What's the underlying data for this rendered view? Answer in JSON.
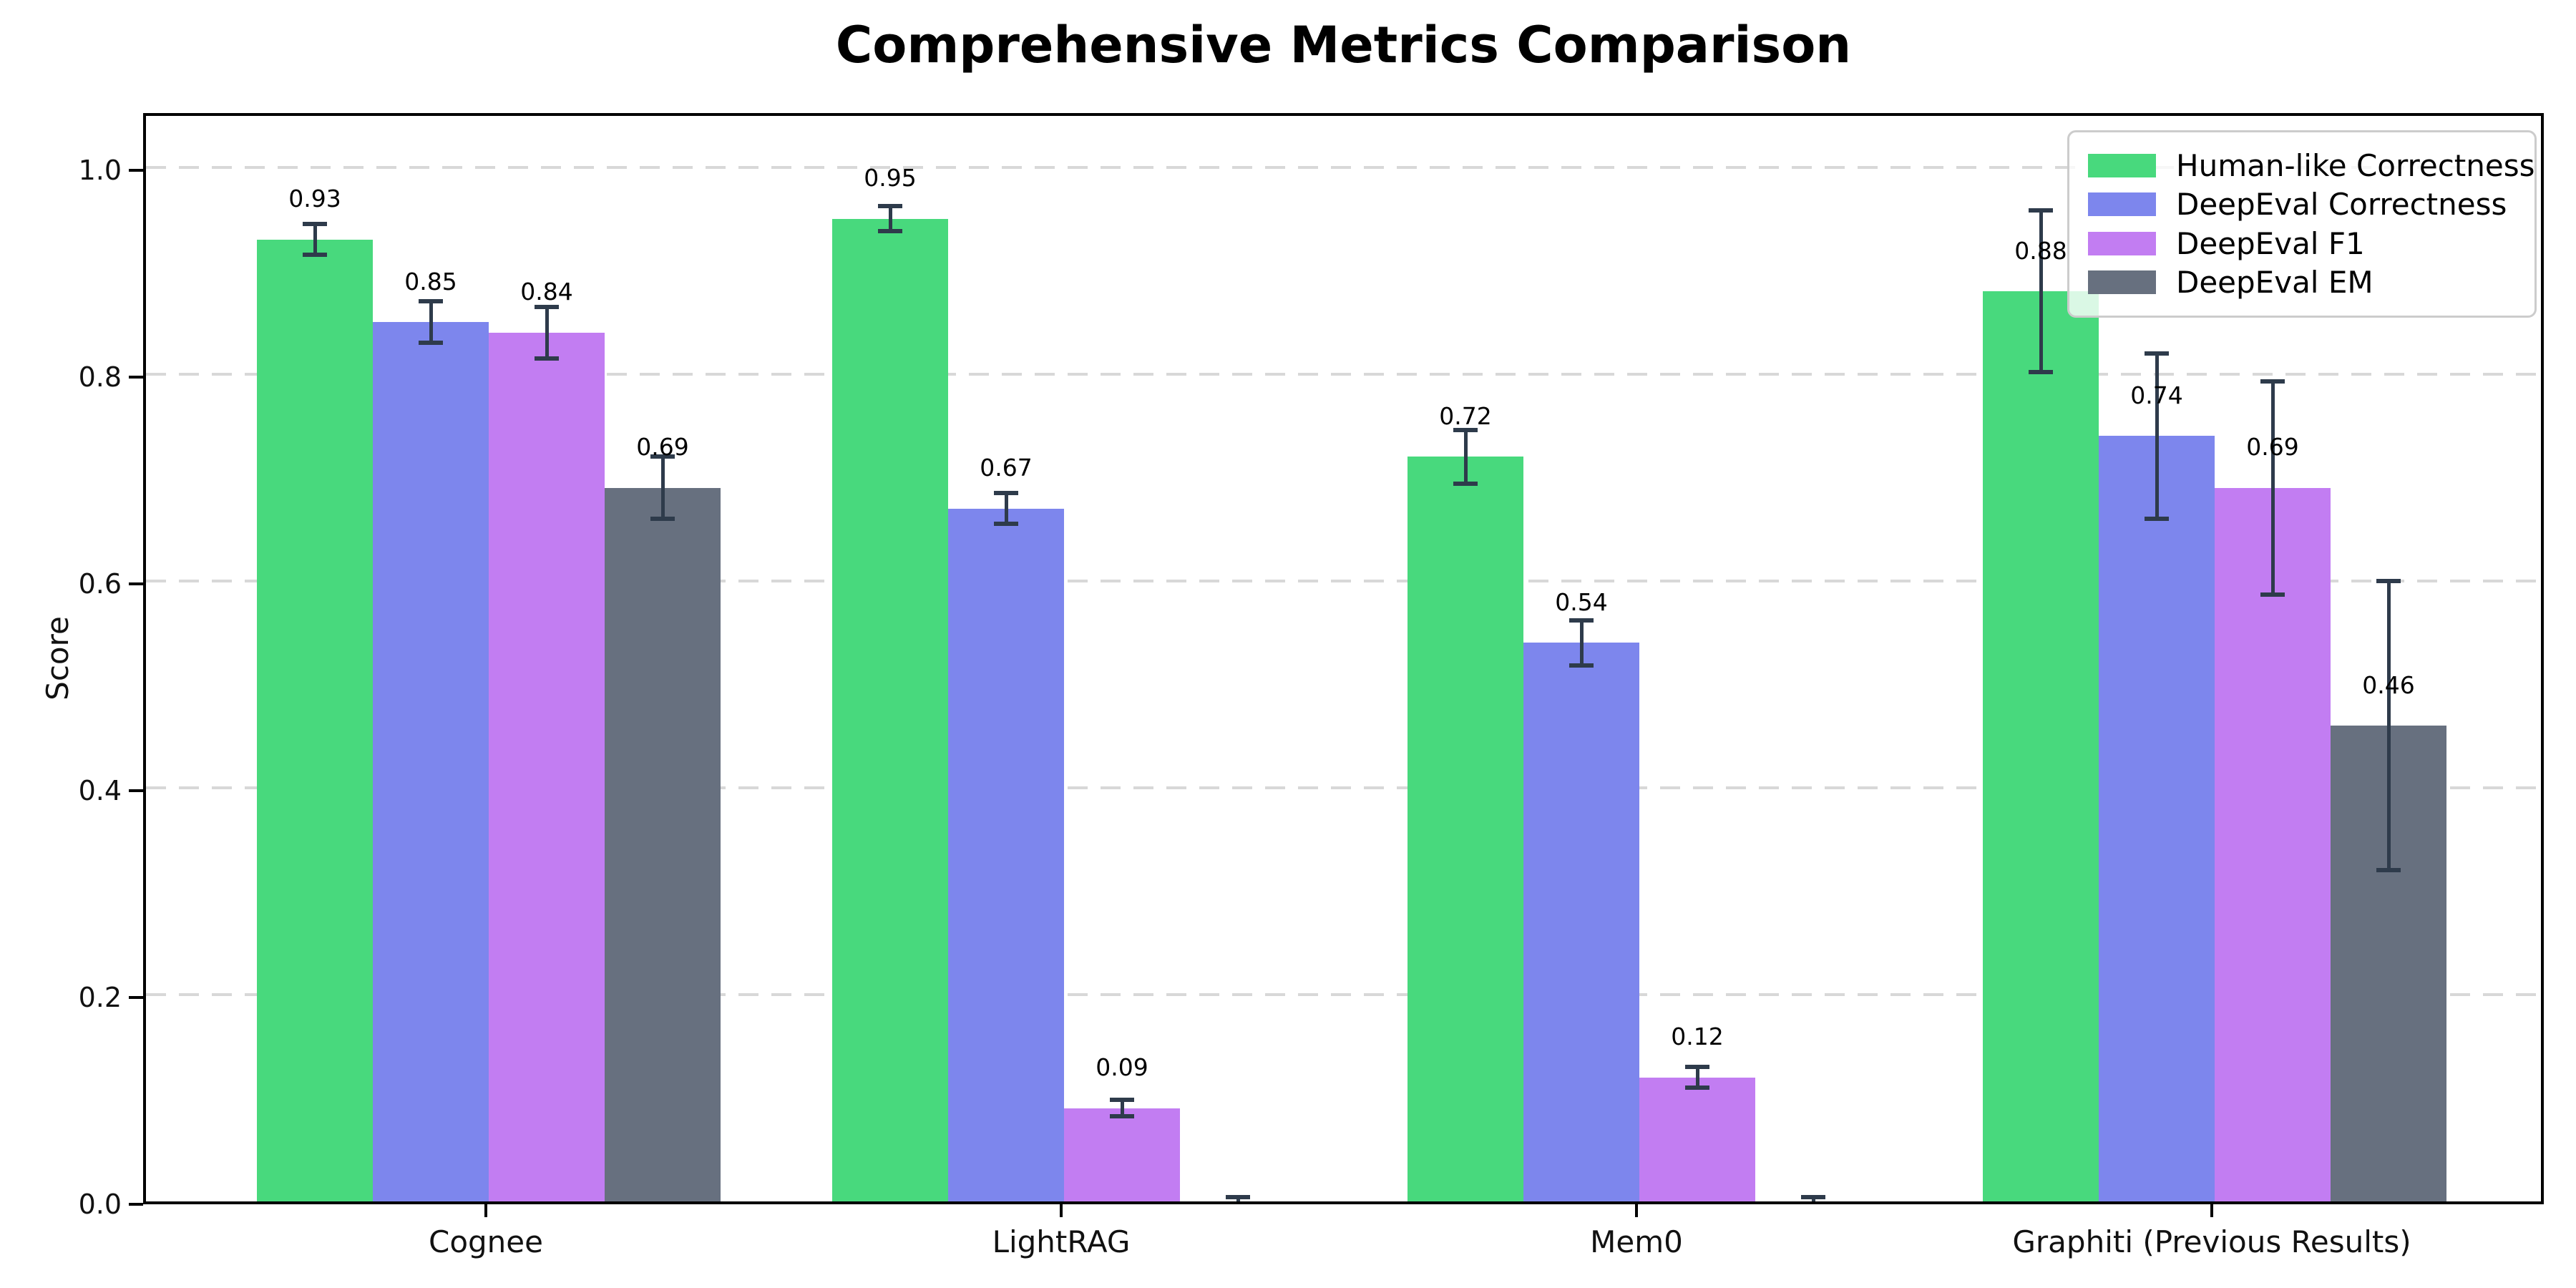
{
  "chart_data": {
    "type": "bar",
    "title": "Comprehensive Metrics Comparison",
    "xlabel": "",
    "ylabel": "Score",
    "categories": [
      "Cognee",
      "LightRAG",
      "Mem0",
      "Graphiti (Previous Results)"
    ],
    "series": [
      {
        "name": "Human-like Correctness",
        "color": "#48d97d",
        "values": [
          0.93,
          0.95,
          0.72,
          0.88
        ],
        "errors": [
          0.015,
          0.012,
          0.026,
          0.078
        ],
        "labels": [
          "0.93",
          "0.95",
          "0.72",
          "0.88"
        ]
      },
      {
        "name": "DeepEval Correctness",
        "color": "#7d86ed",
        "values": [
          0.85,
          0.67,
          0.54,
          0.74
        ],
        "errors": [
          0.02,
          0.015,
          0.022,
          0.08
        ],
        "labels": [
          "0.85",
          "0.67",
          "0.54",
          "0.74"
        ]
      },
      {
        "name": "DeepEval F1",
        "color": "#c27df2",
        "values": [
          0.84,
          0.09,
          0.12,
          0.69
        ],
        "errors": [
          0.025,
          0.008,
          0.01,
          0.103
        ],
        "labels": [
          "0.84",
          "0.09",
          "0.12",
          "0.69"
        ]
      },
      {
        "name": "DeepEval EM",
        "color": "#67707f",
        "values": [
          0.69,
          0.0,
          0.0,
          0.46
        ],
        "errors": [
          0.03,
          0.004,
          0.004,
          0.14
        ],
        "labels": [
          "0.69",
          "",
          "",
          "0.46"
        ]
      }
    ],
    "yticks": [
      "0.0",
      "0.2",
      "0.4",
      "0.6",
      "0.8",
      "1.0"
    ],
    "ytick_values": [
      0.0,
      0.2,
      0.4,
      0.6,
      0.8,
      1.0
    ],
    "ylim": [
      0,
      1.055
    ],
    "grid": "horizontal dashed",
    "grid_color": "#d8d8d8",
    "error_bar_color": "#2e3b4b",
    "legend_position": "upper right",
    "legend_border_color": "#cccccc"
  }
}
